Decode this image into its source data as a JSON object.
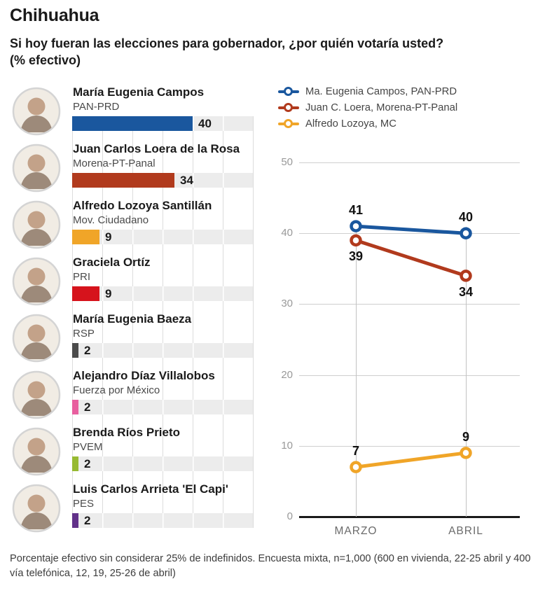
{
  "title": "Chihuahua",
  "subtitle_line1": "Si hoy fueran las elecciones para gobernador, ¿por quién votaría usted?",
  "subtitle_line2": "(% efectivo)",
  "footnote": "Porcentaje efectivo sin considerar 25% de indefinidos. Encuesta mixta, n=1,000 (600 en vivienda, 22-25 abril y 400 vía telefónica, 12, 19, 25-26 de abril)",
  "bar_scale_max": 60,
  "candidates": [
    {
      "name": "María Eugenia Campos",
      "party": "PAN-PRD",
      "value": 40,
      "color": "#1a579e"
    },
    {
      "name": "Juan Carlos Loera de la Rosa",
      "party": "Morena-PT-Panal",
      "value": 34,
      "color": "#b13a1d"
    },
    {
      "name": "Alfredo Lozoya Santillán",
      "party": "Mov. Ciudadano",
      "value": 9,
      "color": "#f0a528"
    },
    {
      "name": "Graciela Ortíz",
      "party": "PRI",
      "value": 9,
      "color": "#d6131c"
    },
    {
      "name": "María Eugenia Baeza",
      "party": "RSP",
      "value": 2,
      "color": "#4b4b4b"
    },
    {
      "name": "Alejandro Díaz Villalobos",
      "party": "Fuerza por México",
      "value": 2,
      "color": "#e85f9f"
    },
    {
      "name": "Brenda Ríos Prieto",
      "party": "PVEM",
      "value": 2,
      "color": "#97ba32"
    },
    {
      "name": "Luis Carlos Arrieta 'El Capi'",
      "party": "PES",
      "value": 2,
      "color": "#613189"
    }
  ],
  "chart_data": [
    {
      "type": "bar",
      "title": "Preferencia efectiva por candidato (%)",
      "categories": [
        "María Eugenia Campos",
        "Juan Carlos Loera de la Rosa",
        "Alfredo Lozoya Santillán",
        "Graciela Ortíz",
        "María Eugenia Baeza",
        "Alejandro Díaz Villalobos",
        "Brenda Ríos Prieto",
        "Luis Carlos Arrieta 'El Capi'"
      ],
      "values": [
        40,
        34,
        9,
        9,
        2,
        2,
        2,
        2
      ],
      "xlim": [
        0,
        60
      ],
      "grid": true
    },
    {
      "type": "line",
      "categories": [
        "MARZO",
        "ABRIL"
      ],
      "series": [
        {
          "name": "Ma. Eugenia Campos, PAN-PRD",
          "color": "#1a579e",
          "values": [
            41,
            40
          ],
          "label_side": "above"
        },
        {
          "name": "Juan C. Loera, Morena-PT-Panal",
          "color": "#b13a1d",
          "values": [
            39,
            34
          ],
          "label_side": "below"
        },
        {
          "name": "Alfredo Lozoya, MC",
          "color": "#f0a528",
          "values": [
            7,
            9
          ],
          "label_side": "above"
        }
      ],
      "ylim": [
        0,
        50
      ],
      "yticks": [
        0,
        10,
        20,
        30,
        40,
        50
      ],
      "legend_position": "top",
      "grid": true
    }
  ]
}
